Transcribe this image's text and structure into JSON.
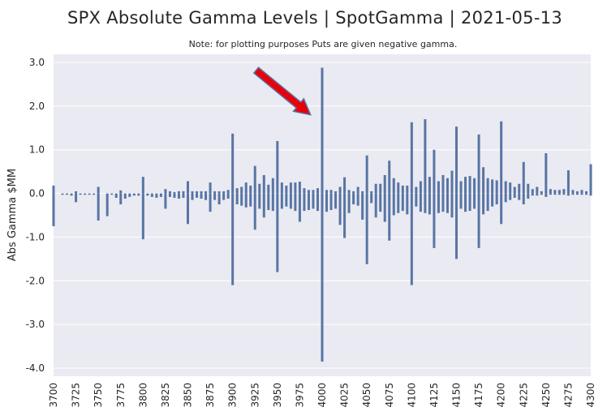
{
  "chart_data": {
    "type": "bar",
    "title": "SPX Absolute Gamma Levels | SpotGamma | 2021-05-13",
    "subtitle": "Note: for plotting purposes Puts are given negative gamma.",
    "xlabel": "",
    "ylabel": "Abs Gamma $MM",
    "ylim": [
      -4.3,
      3.2
    ],
    "xlim": [
      3700,
      4300
    ],
    "yticks": [
      "3.0",
      "2.0",
      "1.0",
      "0.0",
      "-1.0",
      "-2.0",
      "-3.0",
      "-4.0"
    ],
    "xticks": [
      "3700",
      "3725",
      "3750",
      "3775",
      "3800",
      "3825",
      "3850",
      "3875",
      "3900",
      "3925",
      "3950",
      "3975",
      "4000",
      "4025",
      "4050",
      "4075",
      "4100",
      "4125",
      "4150",
      "4175",
      "4200",
      "4225",
      "4250",
      "4275",
      "4300"
    ],
    "grid": true,
    "bar_color": "#5875a4",
    "annotation": {
      "type": "arrow",
      "color": "#e8000b",
      "edge_color": "#5875a4",
      "target_strike": 3987,
      "target_value": 1.8
    },
    "strikes": [
      3700,
      3710,
      3715,
      3720,
      3725,
      3730,
      3735,
      3740,
      3745,
      3750,
      3760,
      3765,
      3770,
      3775,
      3780,
      3785,
      3790,
      3795,
      3800,
      3805,
      3810,
      3815,
      3820,
      3825,
      3830,
      3835,
      3840,
      3845,
      3850,
      3855,
      3860,
      3865,
      3870,
      3875,
      3880,
      3885,
      3890,
      3895,
      3900,
      3905,
      3910,
      3915,
      3920,
      3925,
      3930,
      3935,
      3940,
      3945,
      3950,
      3955,
      3960,
      3965,
      3970,
      3975,
      3980,
      3985,
      3990,
      3995,
      4000,
      4005,
      4010,
      4015,
      4020,
      4025,
      4030,
      4035,
      4040,
      4045,
      4050,
      4055,
      4060,
      4065,
      4070,
      4075,
      4080,
      4085,
      4090,
      4095,
      4100,
      4105,
      4110,
      4115,
      4120,
      4125,
      4130,
      4135,
      4140,
      4145,
      4150,
      4155,
      4160,
      4165,
      4170,
      4175,
      4180,
      4185,
      4190,
      4195,
      4200,
      4205,
      4210,
      4215,
      4220,
      4225,
      4230,
      4235,
      4240,
      4245,
      4250,
      4255,
      4260,
      4265,
      4270,
      4275,
      4280,
      4285,
      4290,
      4295,
      4300
    ],
    "call_gamma": [
      0.18,
      0.0,
      0.0,
      0.0,
      0.05,
      0.0,
      0.0,
      0.0,
      0.0,
      0.15,
      0.0,
      0.0,
      0.0,
      0.07,
      0.0,
      0.0,
      0.0,
      0.0,
      0.38,
      0.0,
      0.0,
      0.0,
      0.0,
      0.1,
      0.05,
      0.03,
      0.05,
      0.05,
      0.28,
      0.05,
      0.05,
      0.05,
      0.05,
      0.25,
      0.05,
      0.05,
      0.05,
      0.08,
      1.37,
      0.12,
      0.15,
      0.25,
      0.18,
      0.63,
      0.22,
      0.42,
      0.2,
      0.35,
      1.2,
      0.25,
      0.18,
      0.25,
      0.25,
      0.27,
      0.12,
      0.08,
      0.08,
      0.12,
      2.88,
      0.08,
      0.08,
      0.05,
      0.15,
      0.37,
      0.08,
      0.05,
      0.15,
      0.05,
      0.87,
      0.05,
      0.22,
      0.22,
      0.42,
      0.75,
      0.35,
      0.25,
      0.18,
      0.18,
      1.63,
      0.15,
      0.28,
      1.7,
      0.38,
      1.0,
      0.28,
      0.42,
      0.35,
      0.52,
      1.53,
      0.28,
      0.38,
      0.4,
      0.35,
      1.35,
      0.6,
      0.35,
      0.32,
      0.3,
      1.65,
      0.28,
      0.25,
      0.15,
      0.22,
      0.72,
      0.22,
      0.1,
      0.15,
      0.05,
      0.92,
      0.1,
      0.08,
      0.08,
      0.1,
      0.53,
      0.08,
      0.05,
      0.08,
      0.05,
      0.67
    ],
    "put_gamma": [
      -0.75,
      -0.03,
      -0.03,
      -0.05,
      -0.2,
      -0.03,
      -0.03,
      -0.03,
      -0.03,
      -0.62,
      -0.52,
      -0.03,
      -0.1,
      -0.25,
      -0.12,
      -0.08,
      -0.05,
      -0.05,
      -1.05,
      -0.05,
      -0.08,
      -0.1,
      -0.08,
      -0.35,
      -0.08,
      -0.1,
      -0.12,
      -0.1,
      -0.7,
      -0.15,
      -0.1,
      -0.12,
      -0.15,
      -0.42,
      -0.15,
      -0.25,
      -0.15,
      -0.12,
      -2.1,
      -0.25,
      -0.28,
      -0.32,
      -0.3,
      -0.83,
      -0.35,
      -0.55,
      -0.38,
      -0.4,
      -1.8,
      -0.35,
      -0.3,
      -0.35,
      -0.4,
      -0.65,
      -0.4,
      -0.38,
      -0.35,
      -0.4,
      -3.85,
      -0.42,
      -0.38,
      -0.35,
      -0.72,
      -1.02,
      -0.45,
      -0.25,
      -0.28,
      -0.6,
      -1.62,
      -0.22,
      -0.55,
      -0.42,
      -0.65,
      -1.08,
      -0.5,
      -0.45,
      -0.4,
      -0.48,
      -2.1,
      -0.3,
      -0.42,
      -0.45,
      -0.48,
      -1.25,
      -0.45,
      -0.42,
      -0.45,
      -0.55,
      -1.5,
      -0.35,
      -0.42,
      -0.4,
      -0.35,
      -1.25,
      -0.48,
      -0.4,
      -0.3,
      -0.25,
      -0.7,
      -0.2,
      -0.15,
      -0.1,
      -0.15,
      -0.25,
      -0.12,
      -0.05,
      -0.05,
      -0.03,
      -0.08,
      -0.03,
      -0.03,
      -0.03,
      -0.03,
      -0.05,
      -0.03,
      -0.03,
      -0.03,
      -0.03,
      -0.05
    ]
  }
}
